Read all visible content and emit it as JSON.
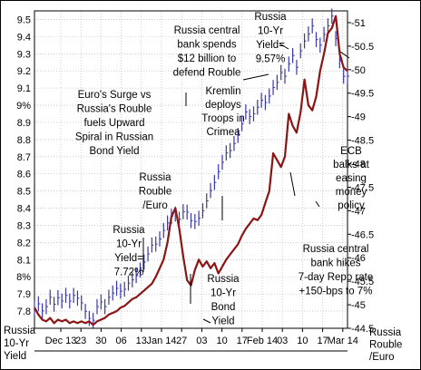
{
  "chart_data": {
    "type": "line",
    "title": "Euro's Surge vs Russia's Rouble fuels Upward Spiral in Russian Bond Yield",
    "title_lines": [
      "Euro's Surge vs",
      "Russia's Rouble",
      "fuels Upward",
      "Spiral in Russian",
      "Bond Yield"
    ],
    "left_axis_title": [
      "Russia",
      "10-Yr",
      "Yield"
    ],
    "right_axis_title": [
      "Russia",
      "Rouble",
      "/Euro"
    ],
    "grid": true,
    "ylim_left": [
      7.7,
      9.55
    ],
    "ylim_right": [
      44.5,
      51.25
    ],
    "y_left_ticks": [
      "7.8",
      "7.9",
      "8%",
      "8.1",
      "8.2",
      "8.3",
      "8.4",
      "8.5",
      "8.6",
      "8.7",
      "8.8",
      "8.9",
      "9%",
      "9.1",
      "9.2",
      "9.3",
      "9.4",
      "9.5"
    ],
    "y_right_ticks": [
      "-44.5",
      "-45",
      "-45.5",
      "-46",
      "-46.5",
      "-47",
      "-47.5",
      "-48",
      "-48.5",
      "-49",
      "-49.5",
      "-50",
      "-50.5",
      "-51"
    ],
    "x_ticks": [
      "Dec 13",
      "23",
      "30",
      "06",
      "13",
      "Jan 14",
      "27",
      "03",
      "10",
      "17",
      "Feb 14",
      "03",
      "10",
      "17",
      "Mar 14"
    ],
    "series": [
      {
        "name": "Russia 10-Yr Bond Yield",
        "axis": "left",
        "color": "#8b1414",
        "x": [
          0,
          1,
          2,
          3,
          4,
          5,
          6,
          7,
          8,
          9,
          10,
          11,
          12,
          13,
          14,
          15,
          16,
          17,
          18,
          19,
          20,
          21,
          22,
          23,
          24,
          25,
          26,
          27,
          28,
          29,
          30,
          31,
          32,
          33,
          34,
          35,
          36,
          37,
          38,
          39,
          40,
          41,
          42,
          43,
          44,
          45,
          46,
          47,
          48,
          49,
          50,
          51,
          52,
          53,
          54,
          55,
          56,
          57,
          58,
          59,
          60,
          61,
          62,
          63,
          64,
          65,
          66,
          67,
          68,
          69,
          70,
          71,
          72,
          73,
          74,
          75,
          76,
          77,
          78,
          79,
          80
        ],
        "values": [
          7.82,
          7.78,
          7.75,
          7.74,
          7.76,
          7.73,
          7.75,
          7.74,
          7.75,
          7.73,
          7.74,
          7.73,
          7.74,
          7.73,
          7.74,
          7.72,
          7.74,
          7.75,
          7.76,
          7.78,
          7.79,
          7.8,
          7.82,
          7.83,
          7.85,
          7.87,
          7.88,
          7.9,
          7.92,
          7.94,
          7.96,
          8.0,
          8.05,
          8.1,
          8.2,
          8.35,
          8.4,
          8.28,
          8.12,
          7.98,
          7.95,
          8.04,
          8.1,
          8.06,
          8.09,
          8.05,
          8.08,
          8.02,
          8.06,
          8.1,
          8.13,
          8.16,
          8.19,
          8.24,
          8.28,
          8.31,
          8.34,
          8.33,
          8.36,
          8.43,
          8.5,
          8.72,
          8.68,
          8.64,
          8.7,
          8.95,
          8.88,
          8.84,
          8.96,
          9.15,
          9.0,
          8.97,
          9.05,
          9.2,
          9.3,
          9.42,
          9.45,
          9.52,
          9.3,
          9.22,
          9.2
        ]
      },
      {
        "name": "Russia Rouble /Euro",
        "axis": "right",
        "color": "#3838a8",
        "x": [
          0,
          1,
          2,
          3,
          4,
          5,
          6,
          7,
          8,
          9,
          10,
          11,
          12,
          13,
          14,
          15,
          16,
          17,
          18,
          19,
          20,
          21,
          22,
          23,
          24,
          25,
          26,
          27,
          28,
          29,
          30,
          31,
          32,
          33,
          34,
          35,
          36,
          37,
          38,
          39,
          40,
          41,
          42,
          43,
          44,
          45,
          46,
          47,
          48,
          49,
          50,
          51,
          52,
          53,
          54,
          55,
          56,
          57,
          58,
          59,
          60,
          61,
          62,
          63,
          64,
          65,
          66,
          67,
          68,
          69,
          70,
          71,
          72,
          73,
          74,
          75,
          76,
          77,
          78,
          79,
          80
        ],
        "values": [
          44.92,
          45.02,
          44.87,
          44.96,
          45.16,
          45.01,
          45.15,
          45.08,
          45.2,
          45.08,
          45.2,
          45.14,
          45.04,
          44.86,
          44.71,
          44.67,
          44.96,
          45.06,
          44.96,
          45.16,
          45.25,
          45.35,
          45.29,
          45.33,
          45.46,
          45.53,
          45.62,
          45.74,
          45.91,
          46.08,
          46.27,
          46.29,
          46.4,
          46.58,
          46.74,
          46.88,
          46.93,
          46.82,
          46.98,
          46.97,
          46.79,
          46.77,
          46.84,
          47.0,
          47.21,
          47.43,
          47.6,
          47.83,
          48.03,
          48.23,
          48.28,
          48.43,
          48.6,
          48.85,
          49.1,
          49.0,
          49.06,
          49.2,
          49.35,
          49.3,
          49.44,
          49.62,
          49.73,
          49.94,
          49.86,
          50.12,
          50.3,
          50.05,
          50.4,
          50.61,
          50.76,
          50.93,
          50.64,
          50.52,
          50.75,
          50.93,
          51.14,
          50.66,
          50.19,
          49.86,
          49.86
        ]
      }
    ],
    "annotations": [
      {
        "id": "ann_cbr_spend",
        "lines": [
          "Russia central",
          "bank spends",
          "$12 billion to",
          "defend Rouble"
        ]
      },
      {
        "id": "ann_yield_957",
        "lines": [
          "Russia",
          "10-Yr",
          "Yield=",
          "9.57%"
        ]
      },
      {
        "id": "ann_kremlin",
        "lines": [
          "Kremlin",
          "deploys",
          "Troops in",
          "Crimea"
        ]
      },
      {
        "id": "ann_ecb",
        "lines": [
          "ECB",
          "balks at",
          "easing",
          "money",
          "policy"
        ]
      },
      {
        "id": "ann_rouble_label",
        "lines": [
          "Russia",
          "Rouble",
          "/Euro"
        ]
      },
      {
        "id": "ann_yield_772",
        "lines": [
          "Russia",
          "10-Yr",
          "Yield=",
          "7.72%"
        ]
      },
      {
        "id": "ann_cbr_hike",
        "lines": [
          "Russia central",
          "bank hikes",
          "7-day Repo rate",
          "+150-bps to 7%"
        ]
      },
      {
        "id": "ann_bond_label",
        "lines": [
          "Russia",
          "10-Yr",
          "Bond",
          "Yield"
        ]
      }
    ]
  },
  "colors": {
    "yield": "#8b1414",
    "rouble": "#3838a8",
    "rouble_text": "#1f1f9c",
    "yield_text": "#a01010",
    "grid": "#b0b0b0",
    "axis": "#000000"
  }
}
